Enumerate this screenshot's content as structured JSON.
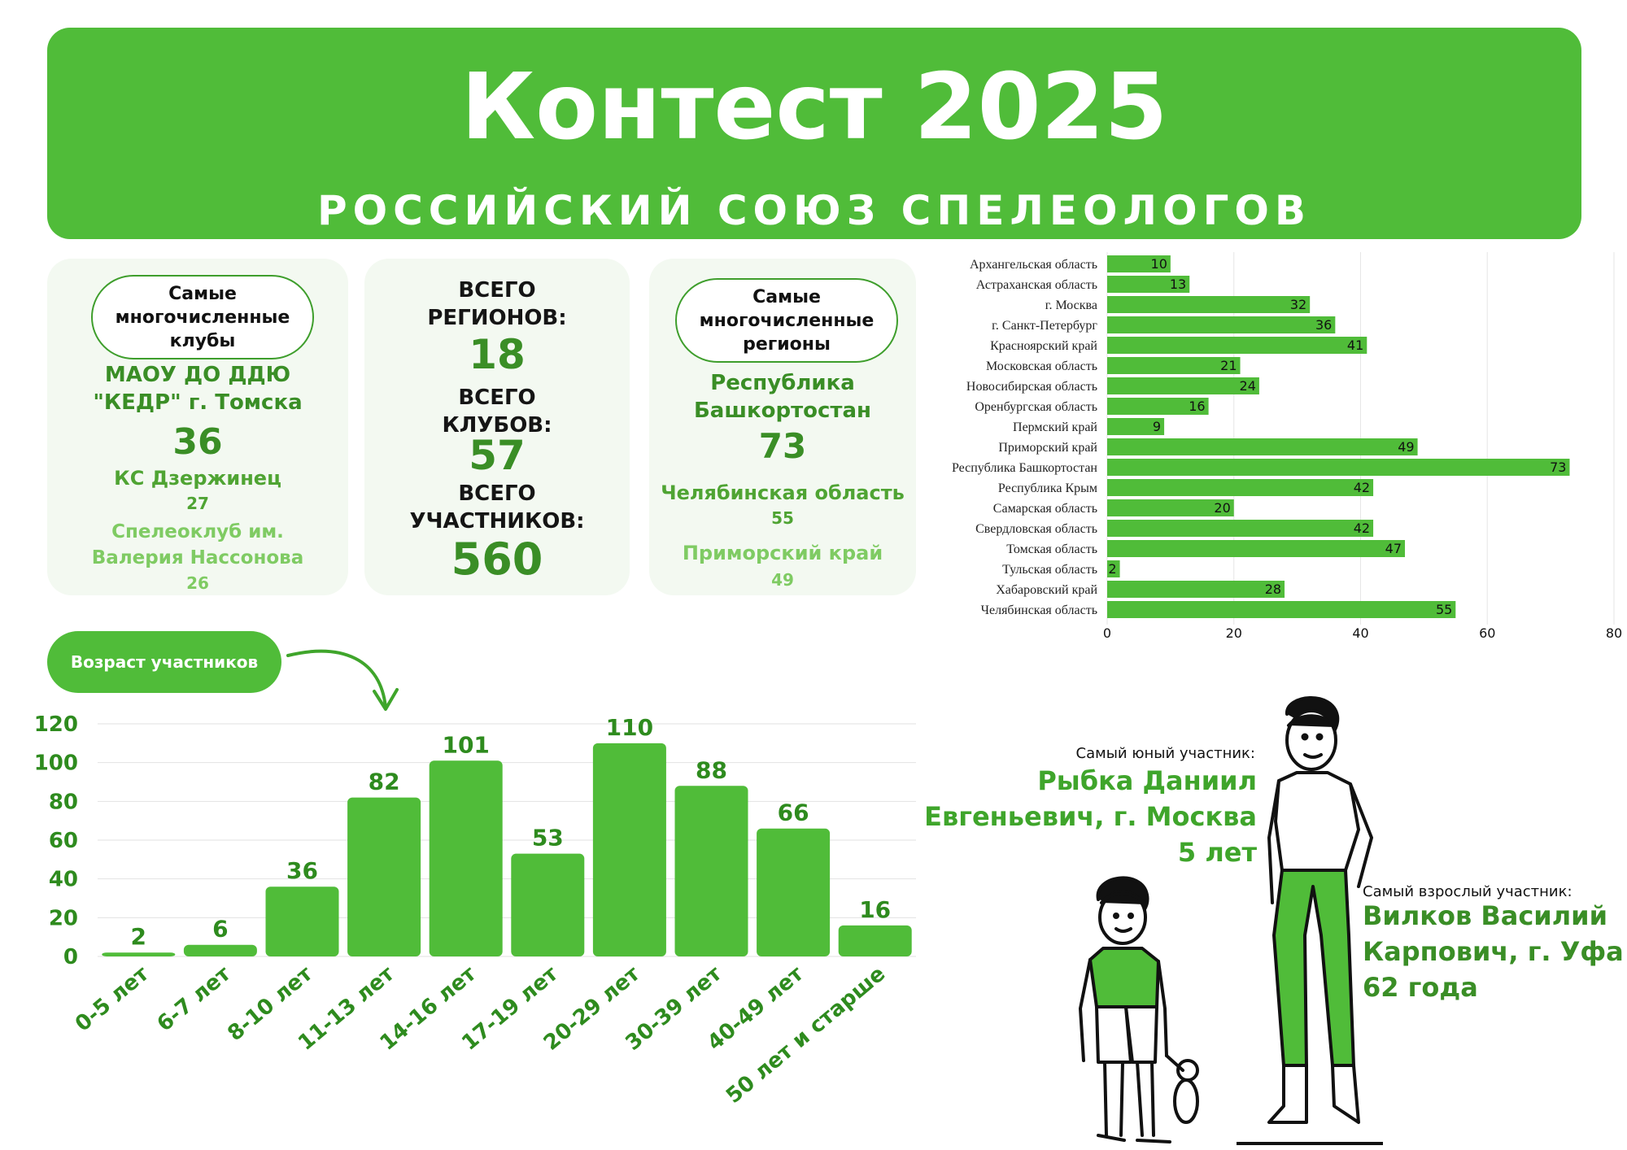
{
  "banner": {
    "title": "Контест 2025",
    "subtitle": "РОССИЙСКИЙ СОЮЗ СПЕЛЕОЛОГОВ"
  },
  "clubs_card": {
    "header_line1": "Самые",
    "header_line2": "многочисленные",
    "header_line3": "клубы",
    "first_name_line1": "МАОУ ДО ДДЮ",
    "first_name_line2": "\"КЕДР\" г. Томска",
    "first_count": "36",
    "second_name": "КС Дзержинец",
    "second_count": "27",
    "third_name_line1": "Спелеоклуб им.",
    "third_name_line2": "Валерия Нассонова",
    "third_count": "26"
  },
  "totals_card": {
    "regions_label_line1": "ВСЕГО",
    "regions_label_line2": "РЕГИОНОВ:",
    "regions_value": "18",
    "clubs_label_line1": "ВСЕГО",
    "clubs_label_line2": "КЛУБОВ:",
    "clubs_value": "57",
    "participants_label_line1": "ВСЕГО",
    "participants_label_line2": "УЧАСТНИКОВ:",
    "participants_value": "560"
  },
  "regions_card": {
    "header_line1": "Самые",
    "header_line2": "многочисленные",
    "header_line3": "регионы",
    "first_name_line1": "Республика",
    "first_name_line2": "Башкортостан",
    "first_count": "73",
    "second_name": "Челябинская область",
    "second_count": "55",
    "third_name": "Приморский край",
    "third_count": "49"
  },
  "age_section": {
    "label": "Возраст участников"
  },
  "youngest": {
    "caption": "Самый юный участник:",
    "name_line1": "Рыбка Даниил",
    "name_line2": "Евгеньевич, г. Москва",
    "age": "5 лет"
  },
  "oldest": {
    "caption": "Самый взрослый участник:",
    "name_line1": "Вилков Василий",
    "name_line2": "Карпович, г. Уфа",
    "age": "62 года"
  },
  "colors": {
    "brand_green": "#50BC39",
    "card_bg": "#F3F9F1",
    "dark_green_text": "#3A8E26",
    "light_green_text": "#7FCB63"
  },
  "illustration": {
    "icons": [
      "boy-with-teddy-icon",
      "adult-man-icon",
      "curved-arrow-icon"
    ]
  },
  "chart_data": [
    {
      "type": "bar",
      "orientation": "horizontal",
      "categories": [
        "Архангельская область",
        "Астраханская область",
        "г. Москва",
        "г. Санкт-Петербург",
        "Красноярский край",
        "Московская область",
        "Новосибирская область",
        "Оренбургская область",
        "Пермский край",
        "Приморский край",
        "Республика Башкортостан",
        "Республика Крым",
        "Самарская область",
        "Свердловская область",
        "Томская область",
        "Тульская область",
        "Хабаровский край",
        "Челябинская область"
      ],
      "values": [
        10,
        13,
        32,
        36,
        41,
        21,
        24,
        16,
        9,
        49,
        73,
        42,
        20,
        42,
        47,
        2,
        28,
        55
      ],
      "xlim": [
        0,
        80
      ],
      "xticks": [
        "0",
        "20",
        "40",
        "60",
        "80"
      ],
      "grid": "vertical gridlines",
      "color": "#50BC39",
      "value_labels": "inside bar end"
    },
    {
      "type": "bar",
      "orientation": "vertical",
      "categories": [
        "0-5 лет",
        "6-7 лет",
        "8-10 лет",
        "11-13 лет",
        "14-16 лет",
        "17-19 лет",
        "20-29 лет",
        "30-39 лет",
        "40-49 лет",
        "50 лет и старше"
      ],
      "values": [
        2,
        6,
        36,
        82,
        101,
        53,
        110,
        88,
        66,
        16
      ],
      "ylim": [
        0,
        120
      ],
      "yticks": [
        "0",
        "20",
        "40",
        "60",
        "80",
        "100",
        "120"
      ],
      "grid": "horizontal gridlines",
      "color": "#50BC39",
      "value_labels": "above bars"
    }
  ]
}
